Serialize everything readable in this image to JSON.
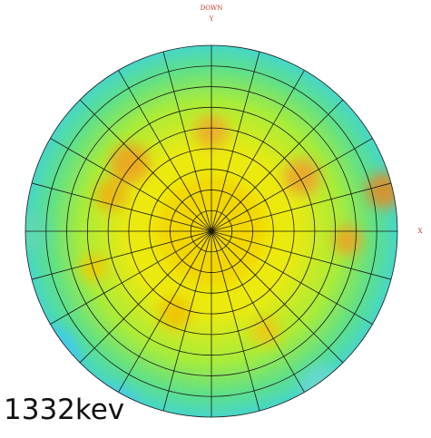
{
  "labels": {
    "top": "DOWN",
    "y_axis": "Y",
    "x_axis": "X",
    "caption": "1332kev"
  }
}
